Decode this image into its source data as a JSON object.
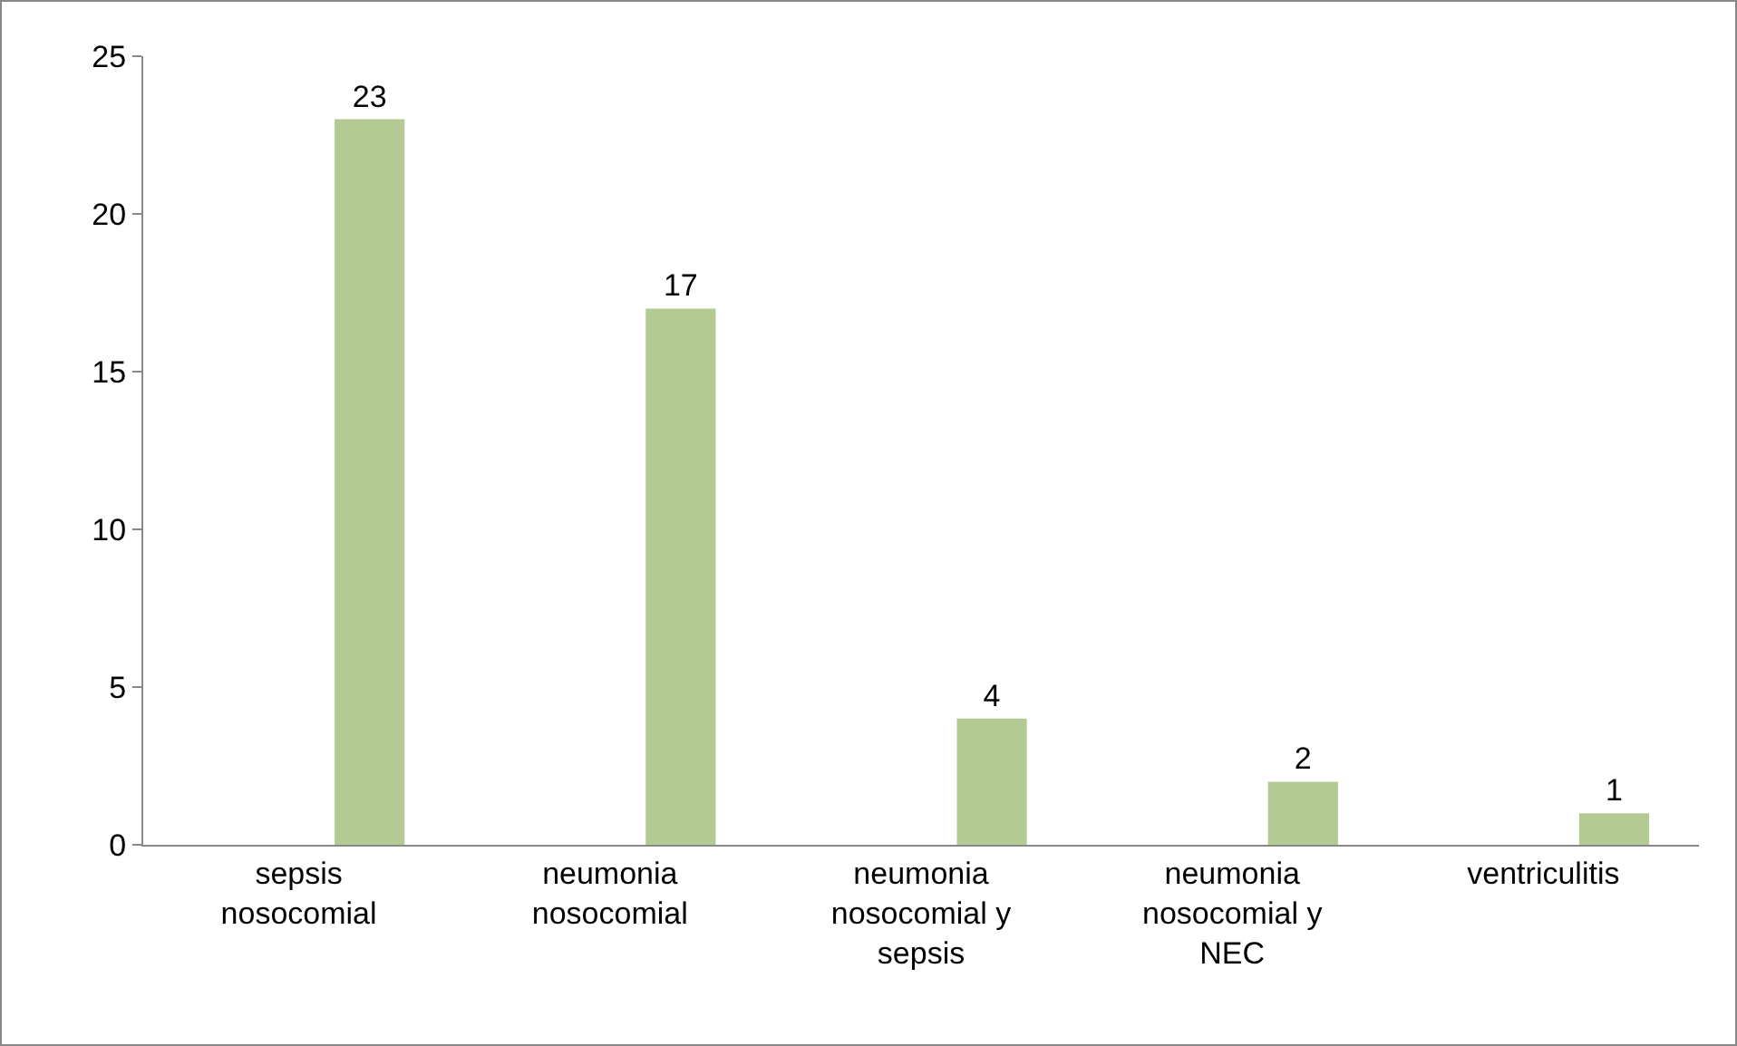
{
  "chart_data": {
    "type": "bar",
    "categories": [
      "sepsis nosocomial",
      "neumonia nosocomial",
      "neumonia nosocomial y sepsis",
      "neumonia nosocomial y NEC",
      "ventriculitis"
    ],
    "values": [
      23,
      17,
      4,
      2,
      1
    ],
    "color": "#b3cb93",
    "ylim": [
      0,
      25
    ],
    "yticks": [
      0,
      5,
      10,
      15,
      20,
      25
    ],
    "grid": false,
    "data_labels": true
  }
}
